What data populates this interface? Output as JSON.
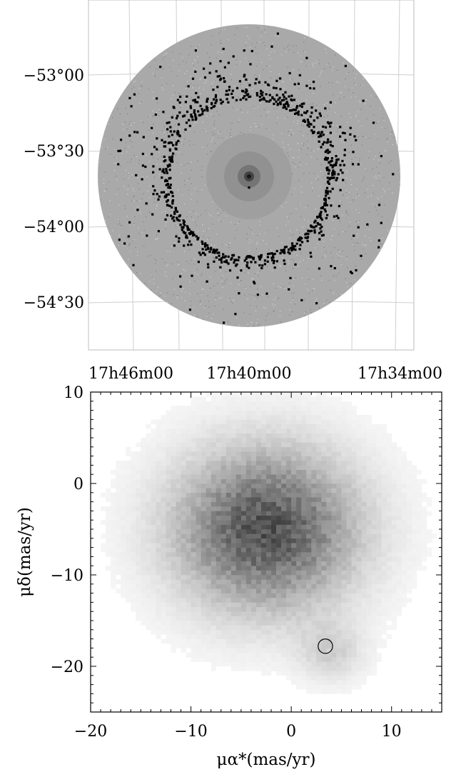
{
  "chart_data": [
    {
      "type": "scatter",
      "panel": "sky map",
      "title": "",
      "xlabel": "",
      "ylabel": "",
      "x_tick_labels": [
        "17h46m00",
        "17h40m00",
        "17h34m00"
      ],
      "y_tick_labels": [
        "−53°00",
        "−53°30",
        "−54°00",
        "−54°30"
      ],
      "y_ticks_deg": [
        -53.0,
        -53.5,
        -54.0,
        -54.5
      ],
      "x_ticks_ra_hours": [
        17.7667,
        17.6667,
        17.5667
      ],
      "field": {
        "center_ra_hours": 17.6667,
        "center_dec_deg": -53.68,
        "radius_deg": 1.0
      },
      "cluster_center": {
        "ra_hours": 17.6667,
        "dec_deg": -53.67
      },
      "ring": {
        "center_dec_deg": -53.68,
        "radius_deg": 0.53
      },
      "background_color": "#a9a9a9",
      "marker_color": "#000000",
      "grid": true
    },
    {
      "type": "heatmap",
      "panel": "proper motion density",
      "title": "",
      "xlabel": "μα*(mas/yr)",
      "ylabel": "μδ(mas/yr)",
      "xlim": [
        -20,
        15
      ],
      "ylim": [
        -25,
        10
      ],
      "x_ticks": [
        -20,
        -10,
        0,
        10
      ],
      "y_ticks": [
        -20,
        -10,
        0,
        10
      ],
      "x_tick_labels": [
        "−20",
        "−10",
        "0",
        "10"
      ],
      "y_tick_labels": [
        "−20",
        "−10",
        "0",
        "10"
      ],
      "field_population_peak": {
        "pmra": -2.5,
        "pmdec": -5.0
      },
      "cluster_population_peak": {
        "pmra": 4.0,
        "pmdec": -18.5
      },
      "selection_circle": {
        "pmra": 3.4,
        "pmdec": -17.8,
        "radius": 0.6
      },
      "grid": false
    }
  ]
}
